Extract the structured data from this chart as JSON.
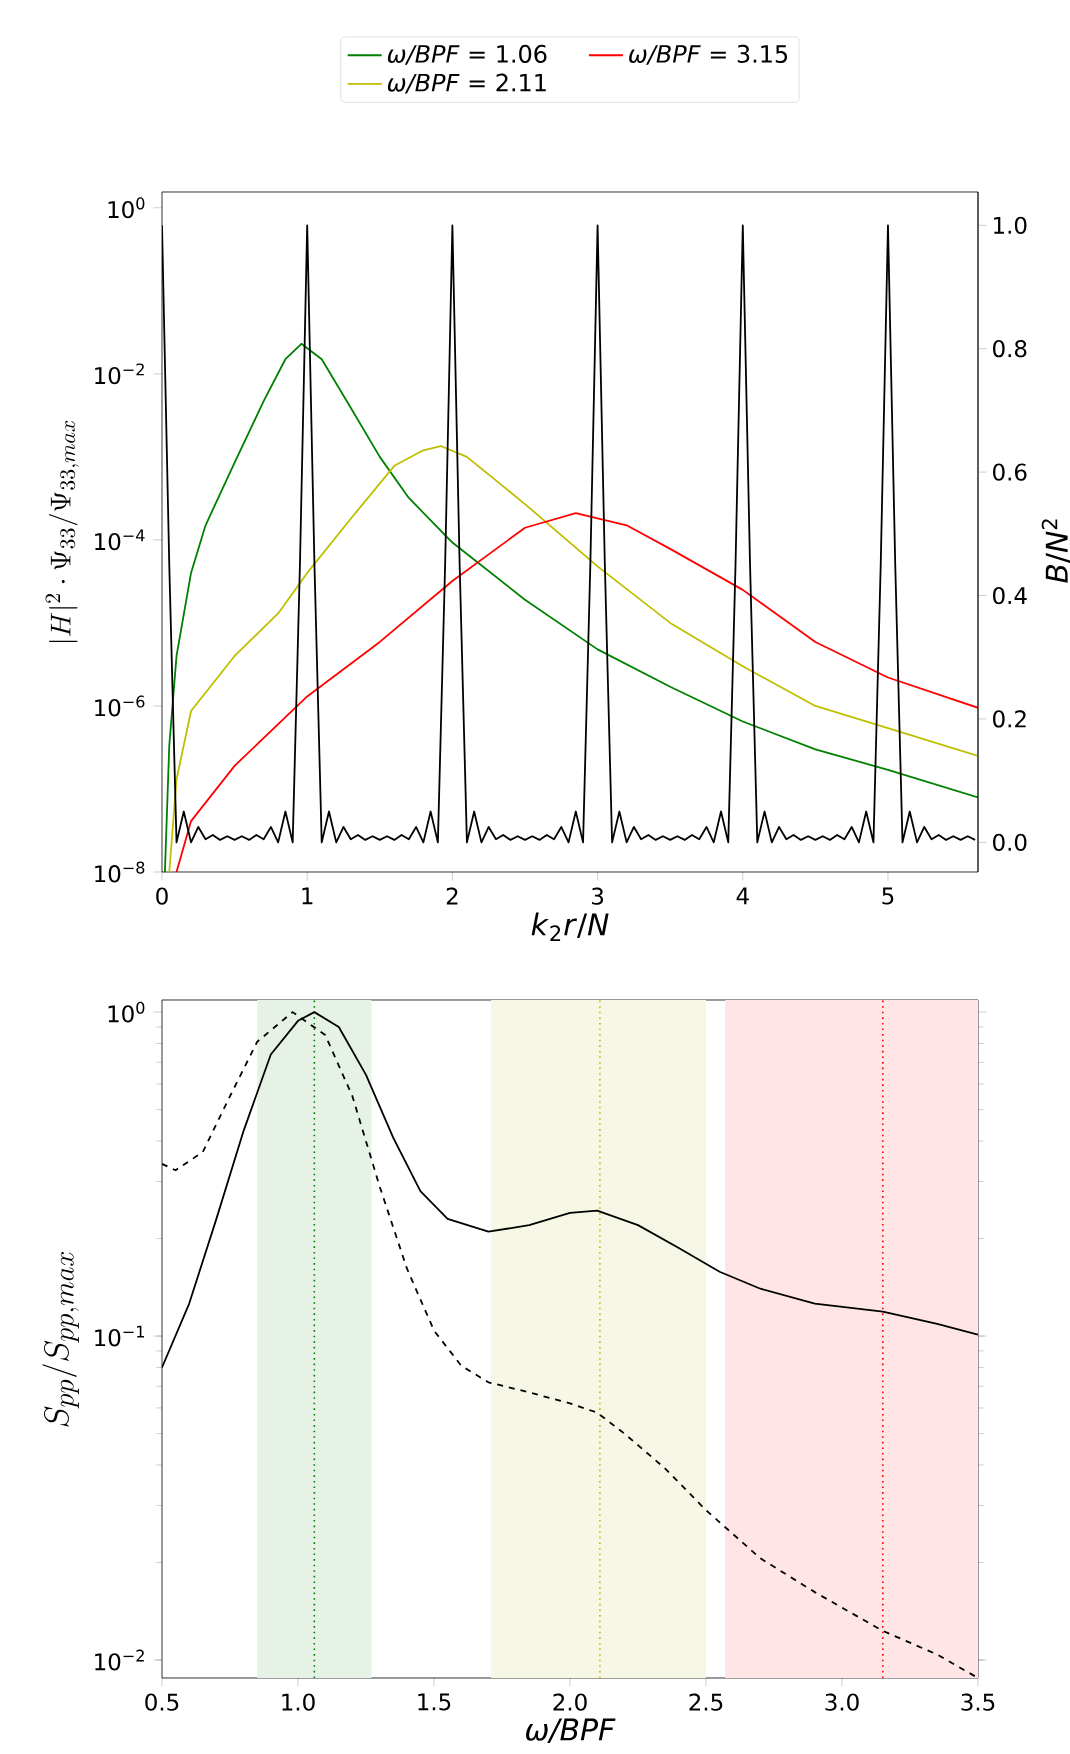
{
  "chart_data": [
    {
      "type": "line",
      "log": "y",
      "xlabel": "*k*$_{2}$*r*/*N*",
      "ylabel": "|H|^{2}\\cdot\\Psi_{33}/\\Psi_{33,max}",
      "y2label": "*B*/*N*$^{2}$",
      "legend": "top",
      "xlim": [
        0,
        5.62
      ],
      "ylim": [
        1e-08,
        1.55
      ],
      "y2lim": [
        -0.048,
        1.054
      ],
      "xticks": [
        0,
        1,
        2,
        3,
        4,
        5
      ],
      "yticks": [
        {
          "value": 1e-08,
          "label": "10$^{−8}$"
        },
        {
          "value": 1e-06,
          "label": "10$^{−6}$"
        },
        {
          "value": 0.0001,
          "label": "10$^{−4}$"
        },
        {
          "value": 0.01,
          "label": "10$^{−2}$"
        },
        {
          "value": 1,
          "label": "10$^{0}$"
        }
      ],
      "y2ticks": [
        {
          "value": 0,
          "label": "0.0"
        },
        {
          "value": 0.2,
          "label": "0.2"
        },
        {
          "value": 0.4,
          "label": "0.4"
        },
        {
          "value": 0.6,
          "label": "0.6"
        },
        {
          "value": 0.8,
          "label": "0.8"
        },
        {
          "value": 1,
          "label": "1.0"
        }
      ],
      "series": [
        {
          "name": "*ω/BPF* = 1.06",
          "color": "#008000",
          "x": [
            0.02,
            0.05,
            0.1,
            0.2,
            0.3,
            0.5,
            0.7,
            0.85,
            0.96,
            1.1,
            1.3,
            1.5,
            1.7,
            2.0,
            2.5,
            3.0,
            3.5,
            4.0,
            4.5,
            5.0,
            5.62
          ],
          "values": [
            1e-08,
            3.3e-07,
            4e-06,
            4e-05,
            0.00015,
            0.00085,
            0.0047,
            0.015,
            0.023,
            0.015,
            0.0039,
            0.001,
            0.00032,
            9.3e-05,
            1.9e-05,
            4.8e-06,
            1.7e-06,
            6.5e-07,
            3e-07,
            1.7e-07,
            7.9e-08
          ]
        },
        {
          "name": "*ω/BPF* = 2.11",
          "color": "#bfbf00",
          "x": [
            0.05,
            0.1,
            0.2,
            0.5,
            0.8,
            1.0,
            1.3,
            1.6,
            1.8,
            1.92,
            2.1,
            2.5,
            3.0,
            3.5,
            4.0,
            4.5,
            5.0,
            5.62
          ],
          "values": [
            1e-08,
            1.3e-07,
            8.7e-07,
            4e-06,
            1.3e-05,
            4e-05,
            0.00018,
            0.00078,
            0.0012,
            0.00135,
            0.001,
            0.00027,
            4.8e-05,
            1e-05,
            3e-06,
            1e-06,
            5.4e-07,
            2.5e-07
          ]
        },
        {
          "name": "*ω/BPF* = 3.15",
          "color": "#ff0000",
          "x": [
            0.1,
            0.2,
            0.5,
            1.0,
            1.5,
            2.0,
            2.5,
            2.85,
            3.2,
            3.5,
            4.0,
            4.5,
            5.0,
            5.62
          ],
          "values": [
            1e-08,
            4.1e-08,
            1.9e-07,
            1.3e-06,
            5.9e-06,
            3.2e-05,
            0.00014,
            0.00021,
            0.00015,
            7.8e-05,
            2.5e-05,
            5.9e-06,
            2.2e-06,
            9.5e-07
          ]
        },
        {
          "color": "#000000",
          "axis": "y2",
          "x": [
            0,
            0.05,
            0.1,
            0.15,
            0.2,
            0.25,
            0.3,
            0.35,
            0.4,
            0.45,
            0.5,
            0.55,
            0.6,
            0.65,
            0.7,
            0.75,
            0.8,
            0.85,
            0.9,
            0.95,
            1,
            1.05,
            1.1,
            1.15,
            1.2,
            1.25,
            1.3,
            1.35,
            1.4,
            1.45,
            1.5,
            1.55,
            1.6,
            1.65,
            1.7,
            1.75,
            1.8,
            1.85,
            1.9,
            1.95,
            2,
            2.05,
            2.1,
            2.15,
            2.2,
            2.25,
            2.3,
            2.35,
            2.4,
            2.45,
            2.5,
            2.55,
            2.6,
            2.65,
            2.7,
            2.75,
            2.8,
            2.85,
            2.9,
            2.95,
            3,
            3.05,
            3.1,
            3.15,
            3.2,
            3.25,
            3.3,
            3.35,
            3.4,
            3.45,
            3.5,
            3.55,
            3.6,
            3.65,
            3.7,
            3.75,
            3.8,
            3.85,
            3.9,
            3.95,
            4,
            4.05,
            4.1,
            4.15,
            4.2,
            4.25,
            4.3,
            4.35,
            4.4,
            4.45,
            4.5,
            4.55,
            4.6,
            4.65,
            4.7,
            4.75,
            4.8,
            4.85,
            4.9,
            4.95,
            5,
            5.05,
            5.1,
            5.15,
            5.2,
            5.25,
            5.3,
            5.35,
            5.4,
            5.45,
            5.5,
            5.55,
            5.6
          ],
          "values": [
            1.0,
            0.45,
            0.0,
            0.05,
            0.0,
            0.025,
            0.005,
            0.012,
            0.004,
            0.01,
            0.004,
            0.01,
            0.004,
            0.012,
            0.005,
            0.025,
            0.0,
            0.05,
            0.0,
            0.45,
            1.0,
            0.45,
            0.0,
            0.05,
            0.0,
            0.025,
            0.005,
            0.012,
            0.004,
            0.01,
            0.004,
            0.01,
            0.004,
            0.012,
            0.005,
            0.025,
            0.0,
            0.05,
            0.0,
            0.45,
            1.0,
            0.45,
            0.0,
            0.05,
            0.0,
            0.025,
            0.005,
            0.012,
            0.004,
            0.01,
            0.004,
            0.01,
            0.004,
            0.012,
            0.005,
            0.025,
            0.0,
            0.05,
            0.0,
            0.45,
            1.0,
            0.45,
            0.0,
            0.05,
            0.0,
            0.025,
            0.005,
            0.012,
            0.004,
            0.01,
            0.004,
            0.01,
            0.004,
            0.012,
            0.005,
            0.025,
            0.0,
            0.05,
            0.0,
            0.45,
            1.0,
            0.45,
            0.0,
            0.05,
            0.0,
            0.025,
            0.005,
            0.012,
            0.004,
            0.01,
            0.004,
            0.01,
            0.004,
            0.012,
            0.005,
            0.025,
            0.0,
            0.05,
            0.0,
            0.45,
            1.0,
            0.45,
            0.0,
            0.05,
            0.0,
            0.025,
            0.005,
            0.012,
            0.004,
            0.01,
            0.004,
            0.01,
            0.004
          ]
        }
      ]
    },
    {
      "type": "line",
      "log": "y",
      "xlabel": "*ω/BPF*",
      "ylabel": "S_{pp}/S_{pp,max}",
      "xlim": [
        0.5,
        3.5
      ],
      "ylim": [
        0.0088,
        1.09
      ],
      "xticks": [
        {
          "value": 0.5,
          "label": "0.5"
        },
        {
          "value": 1,
          "label": "1.0"
        },
        {
          "value": 1.5,
          "label": "1.5"
        },
        {
          "value": 2,
          "label": "2.0"
        },
        {
          "value": 2.5,
          "label": "2.5"
        },
        {
          "value": 3,
          "label": "3.0"
        },
        {
          "value": 3.5,
          "label": "3.5"
        }
      ],
      "yticks": [
        {
          "value": 0.01,
          "label": "10$^{−2}$"
        },
        {
          "value": 0.1,
          "label": "10$^{−1}$"
        },
        {
          "value": 1,
          "label": "10$^{0}$"
        }
      ],
      "bands": [
        {
          "axis": "x",
          "from": 0.85,
          "to": 1.27,
          "color": "#e5f2e5"
        },
        {
          "axis": "x",
          "from": 1.71,
          "to": 2.5,
          "color": "#f7f7e5"
        },
        {
          "axis": "x",
          "from": 2.57,
          "to": 3.5,
          "color": "#ffe5e5"
        }
      ],
      "ref_lines": [
        {
          "axis": "x",
          "value": 1.06,
          "color": "#008000",
          "line_style": "dotted"
        },
        {
          "axis": "x",
          "value": 2.11,
          "color": "#bfbf00",
          "line_style": "dotted"
        },
        {
          "axis": "x",
          "value": 3.15,
          "color": "#ff0000",
          "line_style": "dotted"
        }
      ],
      "series": [
        {
          "color": "#000000",
          "line_style": "solid",
          "x": [
            0.5,
            0.6,
            0.7,
            0.8,
            0.9,
            1.0,
            1.06,
            1.15,
            1.25,
            1.35,
            1.45,
            1.55,
            1.7,
            1.85,
            2.0,
            2.1,
            2.25,
            2.4,
            2.55,
            2.7,
            2.9,
            3.15,
            3.35,
            3.5
          ],
          "values": [
            0.08,
            0.126,
            0.23,
            0.43,
            0.74,
            0.94,
            1.0,
            0.9,
            0.64,
            0.41,
            0.28,
            0.23,
            0.21,
            0.22,
            0.24,
            0.244,
            0.22,
            0.187,
            0.158,
            0.14,
            0.126,
            0.119,
            0.109,
            0.101
          ]
        },
        {
          "color": "#000000",
          "line_style": "dashed",
          "x": [
            0.5,
            0.55,
            0.65,
            0.75,
            0.85,
            0.98,
            1.1,
            1.2,
            1.3,
            1.4,
            1.5,
            1.6,
            1.7,
            1.85,
            2.0,
            2.1,
            2.2,
            2.35,
            2.5,
            2.7,
            2.9,
            3.15,
            3.35,
            3.5
          ],
          "values": [
            0.34,
            0.325,
            0.37,
            0.55,
            0.81,
            1.0,
            0.85,
            0.55,
            0.29,
            0.162,
            0.104,
            0.081,
            0.072,
            0.067,
            0.062,
            0.058,
            0.05,
            0.039,
            0.029,
            0.0206,
            0.0162,
            0.0123,
            0.0104,
            0.0088
          ]
        }
      ]
    }
  ]
}
